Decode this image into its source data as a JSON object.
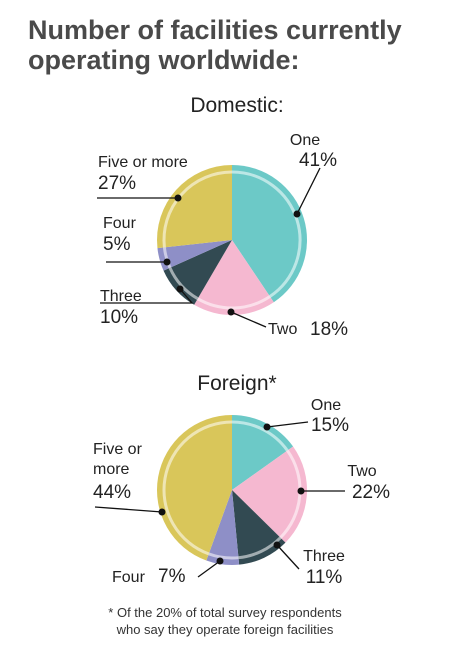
{
  "title": {
    "line1": "Number of facilities currently",
    "line2": "operating worldwide:"
  },
  "footnote": {
    "line1": "* Of the 20% of total survey respondents",
    "line2": "who say they operate foreign facilities"
  },
  "colors": {
    "one": "#6cc9c7",
    "two": "#f5b8d0",
    "three": "#324a52",
    "four": "#8e8fc7",
    "five_or_more": "#d9c65a",
    "title": "#4a4a4a"
  },
  "chart_data": [
    {
      "type": "pie",
      "title": "Domestic:",
      "categories": [
        "One",
        "Two",
        "Three",
        "Four",
        "Five or more"
      ],
      "values": [
        41,
        18,
        10,
        5,
        27
      ],
      "value_labels": [
        "41%",
        "18%",
        "10%",
        "5%",
        "27%"
      ],
      "unit": "%"
    },
    {
      "type": "pie",
      "title": "Foreign*",
      "categories": [
        "One",
        "Two",
        "Three",
        "Four",
        "Five or more"
      ],
      "values": [
        15,
        22,
        11,
        7,
        44
      ],
      "value_labels": [
        "15%",
        "22%",
        "11%",
        "7%",
        "44%"
      ],
      "unit": "%"
    }
  ]
}
